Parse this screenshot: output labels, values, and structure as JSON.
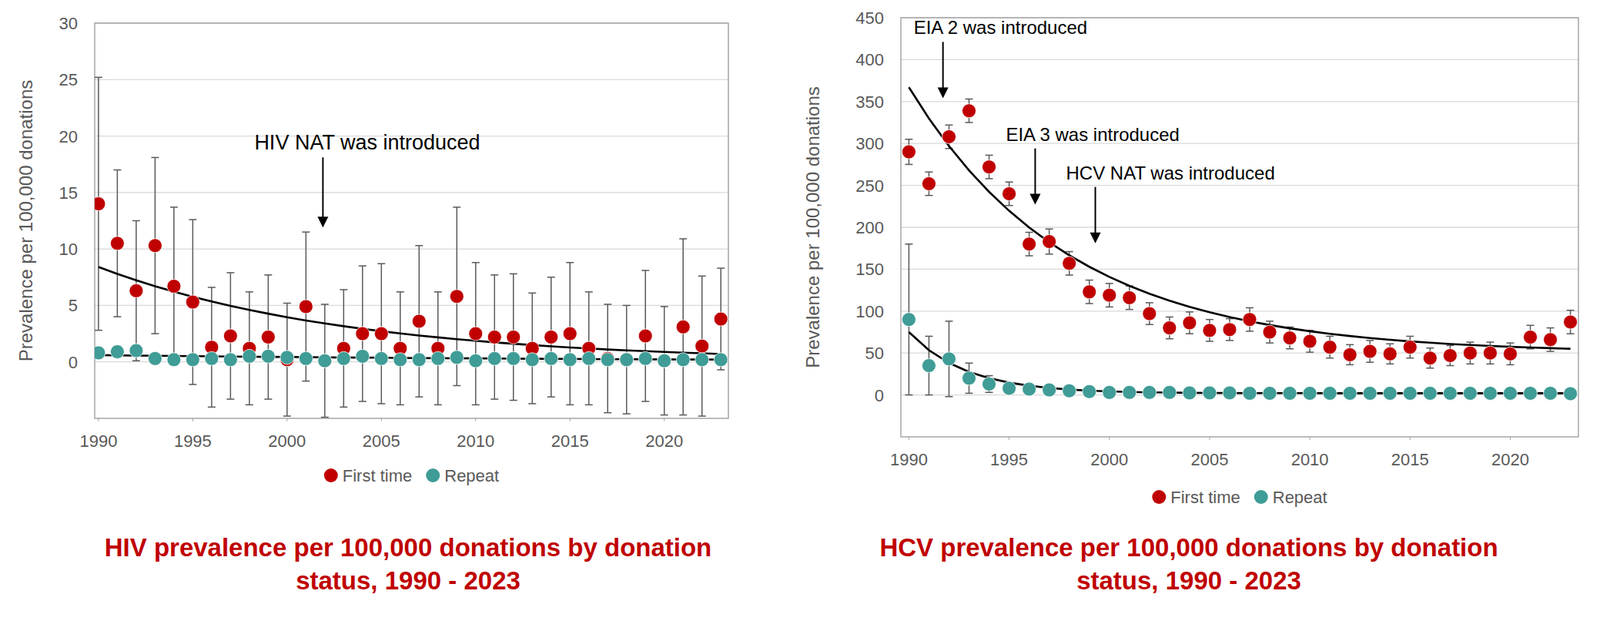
{
  "chart_data": [
    {
      "type": "scatter",
      "title": "HIV prevalence per 100,000 donations by donation status, 1990 - 2023",
      "ylabel": "Prevalence per 100,000 donations",
      "x": [
        1990,
        1991,
        1992,
        1993,
        1994,
        1995,
        1996,
        1997,
        1998,
        1999,
        2000,
        2001,
        2002,
        2003,
        2004,
        2005,
        2006,
        2007,
        2008,
        2009,
        2010,
        2011,
        2012,
        2013,
        2014,
        2015,
        2016,
        2017,
        2018,
        2019,
        2020,
        2021,
        2022,
        2023
      ],
      "xlim": [
        1989.8,
        2023.4
      ],
      "xticks": [
        1990,
        1995,
        2000,
        2005,
        2010,
        2015,
        2020
      ],
      "ylim": [
        -5,
        30
      ],
      "yticks": [
        0,
        5,
        10,
        15,
        20,
        25,
        30
      ],
      "grid": true,
      "legend": "bottom",
      "series": [
        {
          "name": "First time",
          "color": "#c00000",
          "marker": "circle",
          "values": [
            14.0,
            10.5,
            6.3,
            10.3,
            6.7,
            5.3,
            1.3,
            2.3,
            1.2,
            2.2,
            0.2,
            4.9,
            0.1,
            1.2,
            2.5,
            2.5,
            1.2,
            3.6,
            1.2,
            5.8,
            2.5,
            2.2,
            2.2,
            1.2,
            2.2,
            2.5,
            1.2,
            0.3,
            0.2,
            2.3,
            0.1,
            3.1,
            1.4,
            3.8
          ],
          "error": [
            11.2,
            6.5,
            6.2,
            7.8,
            7.0,
            7.3,
            5.3,
            5.6,
            5.0,
            5.5,
            5.0,
            6.6,
            5.0,
            5.2,
            6.0,
            6.2,
            5.0,
            6.7,
            5.0,
            7.9,
            6.3,
            5.5,
            5.6,
            4.9,
            5.3,
            6.3,
            5.0,
            4.8,
            4.8,
            5.8,
            4.8,
            7.8,
            6.2,
            4.5
          ],
          "trend": [
            8.4,
            7.79,
            7.23,
            6.7,
            6.22,
            5.77,
            5.35,
            4.96,
            4.6,
            4.27,
            3.96,
            3.67,
            3.41,
            3.16,
            2.93,
            2.72,
            2.52,
            2.34,
            2.17,
            2.01,
            1.87,
            1.73,
            1.61,
            1.49,
            1.38,
            1.28,
            1.19,
            1.1,
            1.02,
            0.95,
            0.88,
            0.82,
            0.76,
            0.7
          ]
        },
        {
          "name": "Repeat",
          "color": "#3f9c96",
          "marker": "circle",
          "values": [
            0.8,
            0.9,
            1.0,
            0.3,
            0.2,
            0.2,
            0.3,
            0.2,
            0.5,
            0.5,
            0.4,
            0.3,
            0.1,
            0.3,
            0.5,
            0.3,
            0.2,
            0.2,
            0.3,
            0.4,
            0.1,
            0.3,
            0.3,
            0.2,
            0.3,
            0.2,
            0.3,
            0.2,
            0.2,
            0.3,
            0.1,
            0.2,
            0.2,
            0.2
          ],
          "error": [
            0.5,
            0.5,
            0.5,
            0.3,
            0.2,
            0.2,
            0.2,
            0.2,
            0.3,
            0.3,
            0.3,
            0.2,
            0.1,
            0.2,
            0.3,
            0.2,
            0.2,
            0.2,
            0.2,
            0.3,
            0.1,
            0.2,
            0.2,
            0.2,
            0.2,
            0.2,
            0.2,
            0.2,
            0.2,
            0.2,
            0.1,
            0.2,
            0.2,
            0.2
          ],
          "trend": [
            0.6,
            0.58,
            0.56,
            0.54,
            0.53,
            0.51,
            0.49,
            0.48,
            0.46,
            0.45,
            0.43,
            0.42,
            0.4,
            0.39,
            0.38,
            0.37,
            0.35,
            0.34,
            0.33,
            0.32,
            0.31,
            0.3,
            0.29,
            0.28,
            0.27,
            0.26,
            0.25,
            0.24,
            0.24,
            0.23,
            0.22,
            0.21,
            0.21,
            0.2
          ]
        }
      ],
      "annotations": [
        {
          "text": "HIV NAT was introduced",
          "x": 2001.9,
          "y": 11.9
        }
      ]
    },
    {
      "type": "scatter",
      "title": "HCV prevalence per 100,000 donations by donation status, 1990 - 2023",
      "ylabel": "Prevalence per 100,000 donations",
      "x": [
        1990,
        1991,
        1992,
        1993,
        1994,
        1995,
        1996,
        1997,
        1998,
        1999,
        2000,
        2001,
        2002,
        2003,
        2004,
        2005,
        2006,
        2007,
        2008,
        2009,
        2010,
        2011,
        2012,
        2013,
        2014,
        2015,
        2016,
        2017,
        2018,
        2019,
        2020,
        2021,
        2022,
        2023
      ],
      "xlim": [
        1989.6,
        2023.4
      ],
      "xticks": [
        1990,
        1995,
        2000,
        2005,
        2010,
        2015,
        2020
      ],
      "ylim": [
        -50,
        450
      ],
      "yticks": [
        0,
        50,
        100,
        150,
        200,
        250,
        300,
        350,
        400,
        450
      ],
      "grid": true,
      "legend": "bottom",
      "series": [
        {
          "name": "First time",
          "color": "#c00000",
          "marker": "circle",
          "values": [
            290,
            252,
            308,
            339,
            272,
            240,
            180,
            183,
            157,
            123,
            119,
            116,
            97,
            80,
            86,
            77,
            78,
            90,
            75,
            68,
            64,
            57,
            48,
            52,
            49,
            57,
            44,
            47,
            50,
            50,
            49,
            69,
            66,
            87
          ],
          "error": [
            15,
            14,
            14,
            14,
            14,
            14,
            14,
            15,
            14,
            14,
            14,
            14,
            13,
            13,
            13,
            13,
            13,
            14,
            13,
            13,
            13,
            13,
            12,
            13,
            12,
            13,
            12,
            12,
            13,
            13,
            13,
            14,
            14,
            14
          ],
          "trend": [
            367,
            329.8,
            296.9,
            267.9,
            242.3,
            219.7,
            199.7,
            182.2,
            166.6,
            152.9,
            140.8,
            130.1,
            120.7,
            112.4,
            105.1,
            98.6,
            92.9,
            87.8,
            83.4,
            79.5,
            76.0,
            73.0,
            70.3,
            67.9,
            65.8,
            63.9,
            62.3,
            60.8,
            59.6,
            58.4,
            57.4,
            56.6,
            55.8,
            55.1
          ]
        },
        {
          "name": "Repeat",
          "color": "#3f9c96",
          "marker": "circle",
          "values": [
            90,
            35,
            43,
            20,
            13,
            8,
            7,
            6,
            5,
            4,
            3,
            3,
            3,
            3,
            2.5,
            2.5,
            2.5,
            2,
            2,
            2,
            2,
            2,
            2,
            2,
            2,
            2,
            2,
            2,
            2,
            2,
            2,
            2,
            2,
            1.5
          ],
          "error": [
            90,
            35,
            45,
            18,
            10,
            5,
            4,
            3,
            2,
            2,
            1.5,
            1.5,
            1.5,
            1.5,
            1,
            1,
            1,
            1,
            1,
            1,
            1,
            1,
            1,
            1,
            1,
            1,
            1,
            1,
            1,
            1,
            1,
            1,
            1,
            1
          ],
          "trend": [
            75,
            53.4,
            38.2,
            27.5,
            20.0,
            14.7,
            11.0,
            8.3,
            6.4,
            5.1,
            4.2,
            3.5,
            3.1,
            2.8,
            2.5,
            2.4,
            2.3,
            2.2,
            2.1,
            2.1,
            2.1,
            2.0,
            2.0,
            2.0,
            2.0,
            2.0,
            2.0,
            2.0,
            2.0,
            2.0,
            2.0,
            2.0,
            2.0,
            2.0
          ]
        }
      ],
      "annotations": [
        {
          "text": "EIA 2 was introduced",
          "x": 1991.7,
          "y": 354
        },
        {
          "text": "EIA 3 was introduced",
          "x": 1996.3,
          "y": 227
        },
        {
          "text": "HCV NAT was introduced",
          "x": 1999.3,
          "y": 181
        }
      ]
    }
  ]
}
